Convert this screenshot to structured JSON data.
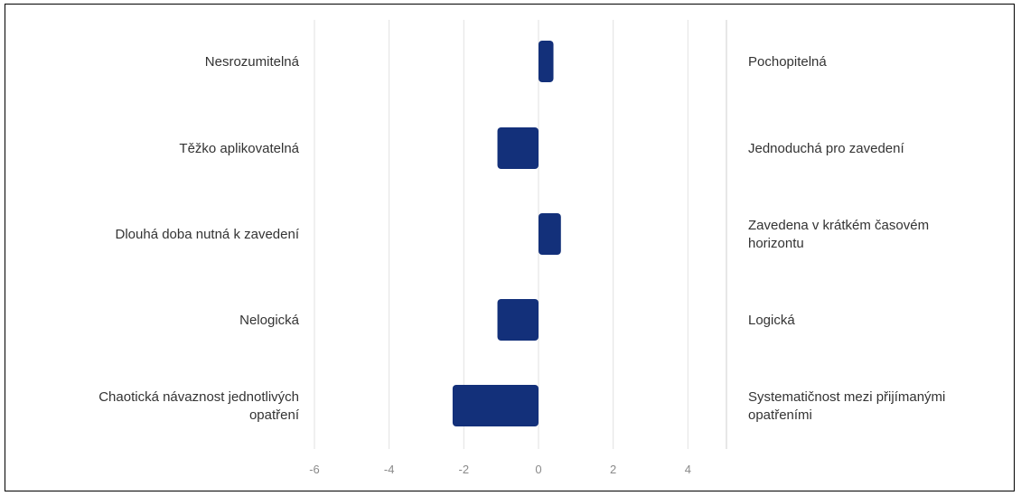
{
  "chart_data": {
    "type": "bar",
    "orientation": "horizontal",
    "categories": [
      "Nesrozumitelná",
      "Těžko aplikovatelná",
      "Dlouhá doba nutná k zavedení",
      "Nelogická",
      "Chaotická návaznost jednotlivých opatření"
    ],
    "left_labels": [
      [
        "Nesrozumitelná"
      ],
      [
        "Těžko aplikovatelná"
      ],
      [
        "Dlouhá doba nutná k zavedení"
      ],
      [
        "Nelogická"
      ],
      [
        "Chaotická návaznost jednotlivých",
        "opatření"
      ]
    ],
    "right_labels": [
      [
        "Pochopitelná"
      ],
      [
        "Jednoduchá pro zavedení"
      ],
      [
        "Zavedena v krátkém časovém",
        "horizontu"
      ],
      [
        "Logická"
      ],
      [
        "Systematičnost mezi přijímanými",
        "opatřeními"
      ]
    ],
    "values": [
      0.4,
      -1.1,
      0.6,
      -1.1,
      -2.3
    ],
    "xlim": [
      -6,
      5
    ],
    "xticks": [
      -6,
      -4,
      -2,
      0,
      2,
      4
    ],
    "grid": true,
    "bar_color": "#13307a",
    "grid_color": "#e2e2e2",
    "legend": "none"
  }
}
